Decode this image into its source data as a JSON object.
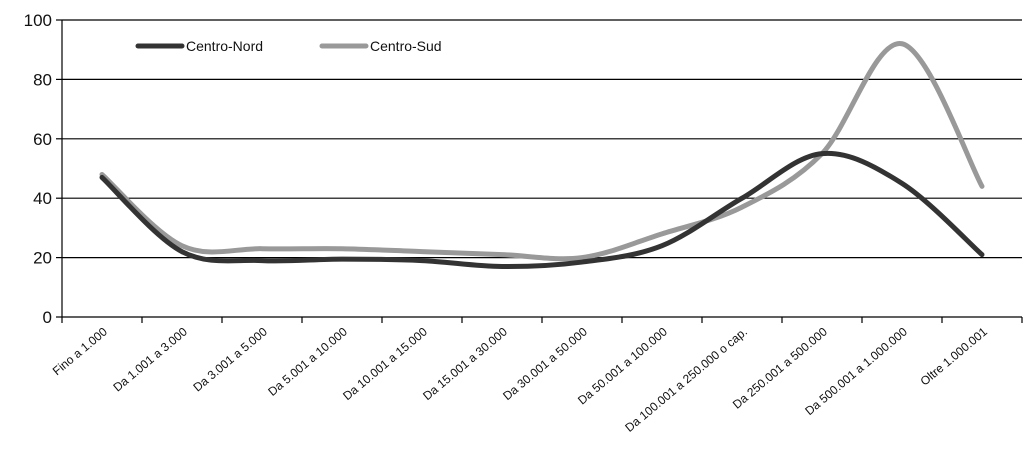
{
  "chart_data": {
    "type": "line",
    "title": "",
    "xlabel": "",
    "ylabel": "",
    "ylim": [
      0,
      100
    ],
    "yticks": [
      0,
      20,
      40,
      60,
      80,
      100
    ],
    "grid": true,
    "legend_position": "top-left",
    "categories": [
      "Fino a 1.000",
      "Da 1.001 a 3.000",
      "Da 3.001 a 5.000",
      "Da 5.001 a 10.000",
      "Da 10.001 a 15.000",
      "Da 15.001 a 30.000",
      "Da 30.001 a 50.000",
      "Da 50.001 a 100.000",
      "Da 100.001 a 250.000 o cap.",
      "Da 250.001 a 500.000",
      "Da 500.001 a 1.000.000",
      "Oltre 1.000.001"
    ],
    "series": [
      {
        "name": "Centro-Nord",
        "color": "#333333",
        "values": [
          47,
          22,
          19,
          19.5,
          19,
          17,
          18.5,
          24,
          40,
          55,
          45,
          21
        ]
      },
      {
        "name": "Centro-Sud",
        "color": "#999999",
        "values": [
          48,
          24,
          23,
          23,
          22,
          21,
          20,
          28,
          37,
          55,
          92,
          44
        ]
      }
    ]
  }
}
